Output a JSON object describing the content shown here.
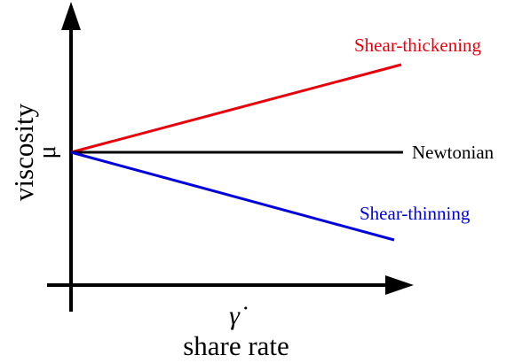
{
  "diagram": {
    "y_axis": {
      "label": "viscosity",
      "symbol": "μ"
    },
    "x_axis": {
      "label": "share rate",
      "symbol": "γ̇"
    },
    "curves": [
      {
        "id": "shear-thickening",
        "label": "Shear-thickening",
        "color": "#e8000b"
      },
      {
        "id": "newtonian",
        "label": "Newtonian",
        "color": "#000000"
      },
      {
        "id": "shear-thinning",
        "label": "Shear-thinning",
        "color": "#0000dd"
      }
    ]
  }
}
